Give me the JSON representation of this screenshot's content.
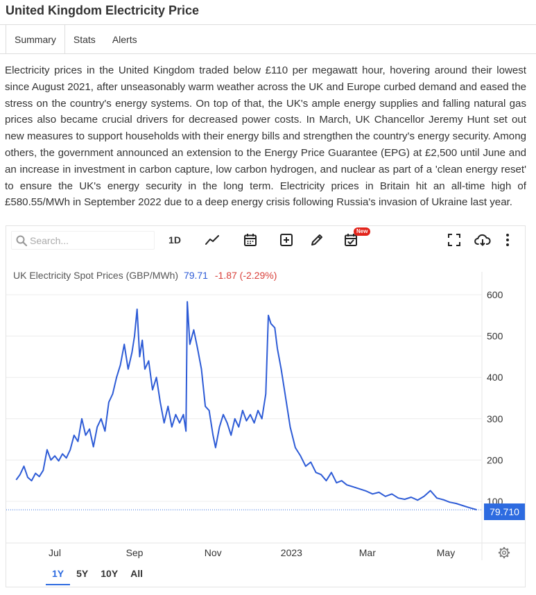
{
  "page": {
    "title": "United Kingdom Electricity Price"
  },
  "tabs": [
    {
      "label": "Summary",
      "active": true
    },
    {
      "label": "Stats",
      "active": false
    },
    {
      "label": "Alerts",
      "active": false
    }
  ],
  "summary_text": "Electricity prices in the United Kingdom traded below £110 per megawatt hour, hovering around their lowest since August 2021, after unseasonably warm weather across the UK and Europe curbed demand and eased the stress on the country's energy systems. On top of that, the UK's ample energy supplies and falling natural gas prices also became crucial drivers for decreased power costs. In March, UK Chancellor Jeremy Hunt set out new measures to support households with their energy bills and strengthen the country's energy security. Among others, the government announced an extension to the Energy Price Guarantee (EPG) at £2,500 until June and an increase in investment in carbon capture, low carbon hydrogen, and nuclear as part of a 'clean energy reset' to ensure the UK's energy security in the long term. Electricity prices in Britain hit an all-time high of £580.55/MWh in September 2022 due to a deep energy crisis following Russia's invasion of Ukraine last year.",
  "toolbar": {
    "search_placeholder": "Search...",
    "interval_label": "1D",
    "new_badge": "New",
    "icons": [
      "search-icon",
      "line-chart-icon",
      "calendar-icon",
      "add-icon",
      "pencil-icon",
      "calendar-check-icon",
      "fullscreen-icon",
      "cloud-download-icon",
      "more-vertical-icon"
    ]
  },
  "legend": {
    "name": "UK Electricity Spot Prices (GBP/MWh)",
    "last": "79.71",
    "change": "-1.87 (-2.29%)"
  },
  "price_tag": "79.710",
  "ranges": [
    {
      "label": "1Y",
      "active": true
    },
    {
      "label": "5Y",
      "active": false
    },
    {
      "label": "10Y",
      "active": false
    },
    {
      "label": "All",
      "active": false
    }
  ],
  "colors": {
    "line": "#2d5bd6",
    "accent": "#2d6be0",
    "negative": "#d9403a",
    "grid": "#ececec"
  },
  "chart_data": {
    "type": "line",
    "title": "",
    "series": [
      {
        "name": "UK Electricity Spot Prices (GBP/MWh)"
      }
    ],
    "ylim": [
      0,
      650
    ],
    "yticks": [
      100,
      200,
      300,
      400,
      500,
      600
    ],
    "xticks": [
      "Jul",
      "Sep",
      "Nov",
      "2023",
      "Mar",
      "May"
    ],
    "x_domain": [
      "2022-05-27",
      "2023-05-27"
    ],
    "last_value": 79.71,
    "points": [
      [
        "2022-06-01",
        152
      ],
      [
        "2022-06-04",
        165
      ],
      [
        "2022-06-07",
        185
      ],
      [
        "2022-06-10",
        158
      ],
      [
        "2022-06-13",
        150
      ],
      [
        "2022-06-16",
        168
      ],
      [
        "2022-06-19",
        160
      ],
      [
        "2022-06-22",
        175
      ],
      [
        "2022-06-25",
        225
      ],
      [
        "2022-06-28",
        200
      ],
      [
        "2022-07-01",
        210
      ],
      [
        "2022-07-04",
        198
      ],
      [
        "2022-07-07",
        215
      ],
      [
        "2022-07-10",
        205
      ],
      [
        "2022-07-13",
        225
      ],
      [
        "2022-07-16",
        260
      ],
      [
        "2022-07-19",
        245
      ],
      [
        "2022-07-22",
        300
      ],
      [
        "2022-07-25",
        260
      ],
      [
        "2022-07-28",
        275
      ],
      [
        "2022-07-31",
        232
      ],
      [
        "2022-08-03",
        280
      ],
      [
        "2022-08-06",
        300
      ],
      [
        "2022-08-09",
        270
      ],
      [
        "2022-08-12",
        340
      ],
      [
        "2022-08-15",
        360
      ],
      [
        "2022-08-18",
        400
      ],
      [
        "2022-08-21",
        430
      ],
      [
        "2022-08-24",
        480
      ],
      [
        "2022-08-27",
        420
      ],
      [
        "2022-08-30",
        460
      ],
      [
        "2022-09-01",
        500
      ],
      [
        "2022-09-03",
        565
      ],
      [
        "2022-09-05",
        450
      ],
      [
        "2022-09-07",
        490
      ],
      [
        "2022-09-09",
        420
      ],
      [
        "2022-09-12",
        440
      ],
      [
        "2022-09-15",
        370
      ],
      [
        "2022-09-18",
        400
      ],
      [
        "2022-09-21",
        340
      ],
      [
        "2022-09-24",
        290
      ],
      [
        "2022-09-27",
        330
      ],
      [
        "2022-09-30",
        280
      ],
      [
        "2022-10-03",
        310
      ],
      [
        "2022-10-06",
        290
      ],
      [
        "2022-10-09",
        310
      ],
      [
        "2022-10-11",
        270
      ],
      [
        "2022-10-12",
        583
      ],
      [
        "2022-10-14",
        480
      ],
      [
        "2022-10-17",
        515
      ],
      [
        "2022-10-20",
        470
      ],
      [
        "2022-10-23",
        420
      ],
      [
        "2022-10-26",
        330
      ],
      [
        "2022-10-29",
        320
      ],
      [
        "2022-11-01",
        260
      ],
      [
        "2022-11-03",
        230
      ],
      [
        "2022-11-06",
        280
      ],
      [
        "2022-11-09",
        310
      ],
      [
        "2022-11-12",
        290
      ],
      [
        "2022-11-15",
        260
      ],
      [
        "2022-11-18",
        300
      ],
      [
        "2022-11-21",
        280
      ],
      [
        "2022-11-24",
        320
      ],
      [
        "2022-11-27",
        295
      ],
      [
        "2022-11-30",
        310
      ],
      [
        "2022-12-03",
        290
      ],
      [
        "2022-12-06",
        320
      ],
      [
        "2022-12-09",
        300
      ],
      [
        "2022-12-12",
        360
      ],
      [
        "2022-12-14",
        550
      ],
      [
        "2022-12-16",
        530
      ],
      [
        "2022-12-19",
        520
      ],
      [
        "2022-12-21",
        470
      ],
      [
        "2022-12-24",
        420
      ],
      [
        "2022-12-27",
        360
      ],
      [
        "2022-12-31",
        280
      ],
      [
        "2023-01-04",
        230
      ],
      [
        "2023-01-08",
        210
      ],
      [
        "2023-01-12",
        185
      ],
      [
        "2023-01-16",
        195
      ],
      [
        "2023-01-20",
        170
      ],
      [
        "2023-01-24",
        165
      ],
      [
        "2023-01-28",
        150
      ],
      [
        "2023-02-01",
        170
      ],
      [
        "2023-02-05",
        145
      ],
      [
        "2023-02-09",
        150
      ],
      [
        "2023-02-13",
        140
      ],
      [
        "2023-02-18",
        135
      ],
      [
        "2023-02-23",
        130
      ],
      [
        "2023-02-28",
        125
      ],
      [
        "2023-03-05",
        118
      ],
      [
        "2023-03-10",
        122
      ],
      [
        "2023-03-15",
        112
      ],
      [
        "2023-03-20",
        118
      ],
      [
        "2023-03-25",
        108
      ],
      [
        "2023-03-30",
        105
      ],
      [
        "2023-04-04",
        110
      ],
      [
        "2023-04-09",
        103
      ],
      [
        "2023-04-14",
        112
      ],
      [
        "2023-04-19",
        126
      ],
      [
        "2023-04-24",
        108
      ],
      [
        "2023-04-29",
        104
      ],
      [
        "2023-05-04",
        98
      ],
      [
        "2023-05-09",
        95
      ],
      [
        "2023-05-14",
        90
      ],
      [
        "2023-05-19",
        85
      ],
      [
        "2023-05-25",
        79.71
      ]
    ]
  }
}
